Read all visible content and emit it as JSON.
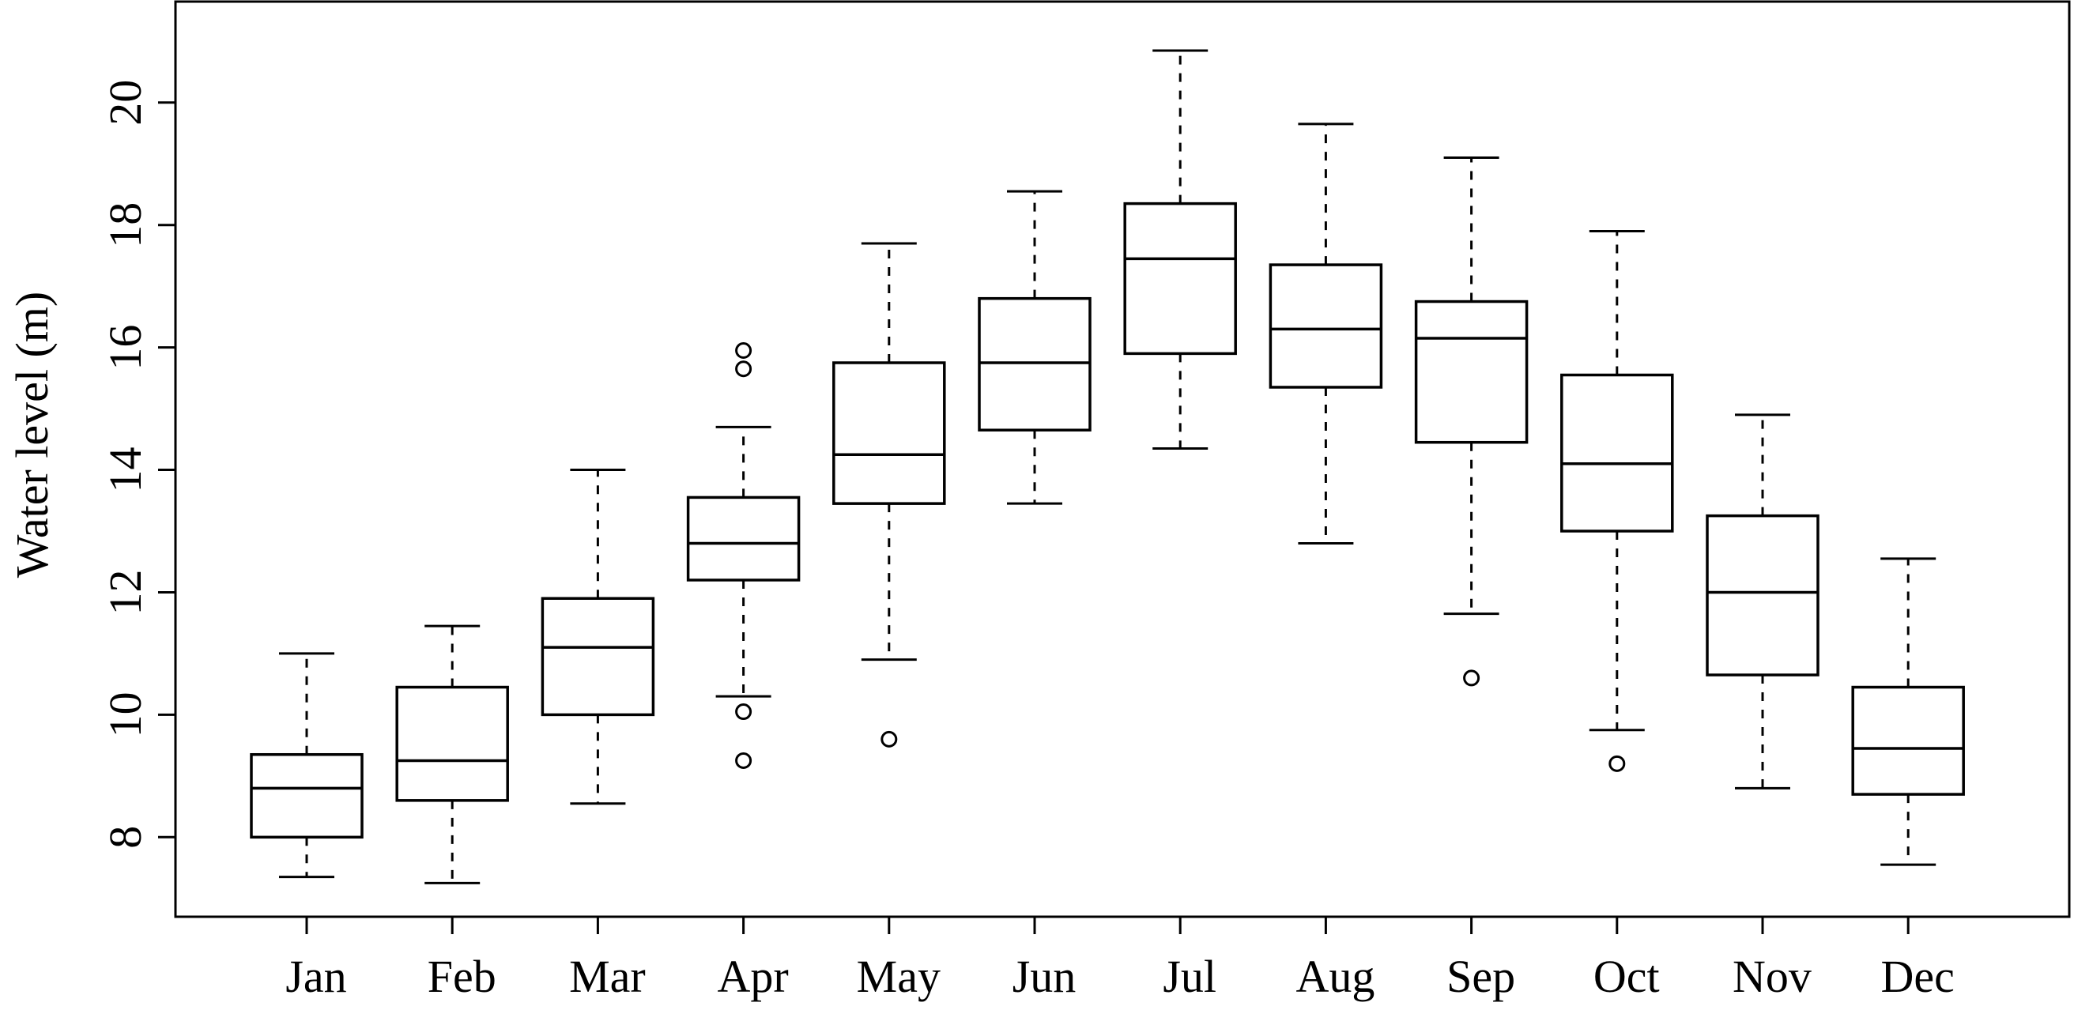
{
  "chart_data": {
    "type": "boxplot",
    "xlabel": "",
    "ylabel": "Water level (m)",
    "ylim": [
      6.7,
      21.65
    ],
    "yticks": [
      8,
      10,
      12,
      14,
      16,
      18,
      20
    ],
    "categories": [
      "Jan",
      "Feb",
      "Mar",
      "Apr",
      "May",
      "Jun",
      "Jul",
      "Aug",
      "Sep",
      "Oct",
      "Nov",
      "Dec"
    ],
    "boxes": [
      {
        "month": "Jan",
        "whisker_low": 7.35,
        "q1": 8.0,
        "median": 8.8,
        "q3": 9.35,
        "whisker_high": 11.0,
        "outliers": []
      },
      {
        "month": "Feb",
        "whisker_low": 7.25,
        "q1": 8.6,
        "median": 9.25,
        "q3": 10.45,
        "whisker_high": 11.45,
        "outliers": []
      },
      {
        "month": "Mar",
        "whisker_low": 8.55,
        "q1": 10.0,
        "median": 11.1,
        "q3": 11.9,
        "whisker_high": 14.0,
        "outliers": []
      },
      {
        "month": "Apr",
        "whisker_low": 10.3,
        "q1": 12.2,
        "median": 12.8,
        "q3": 13.55,
        "whisker_high": 14.7,
        "outliers": [
          15.95,
          15.65,
          10.05,
          9.25
        ]
      },
      {
        "month": "May",
        "whisker_low": 10.9,
        "q1": 13.45,
        "median": 14.25,
        "q3": 15.75,
        "whisker_high": 17.7,
        "outliers": [
          9.6
        ]
      },
      {
        "month": "Jun",
        "whisker_low": 13.45,
        "q1": 14.65,
        "median": 15.75,
        "q3": 16.8,
        "whisker_high": 18.55,
        "outliers": []
      },
      {
        "month": "Jul",
        "whisker_low": 14.35,
        "q1": 15.9,
        "median": 17.45,
        "q3": 18.35,
        "whisker_high": 20.85,
        "outliers": []
      },
      {
        "month": "Aug",
        "whisker_low": 12.8,
        "q1": 15.35,
        "median": 16.3,
        "q3": 17.35,
        "whisker_high": 19.65,
        "outliers": []
      },
      {
        "month": "Sep",
        "whisker_low": 11.65,
        "q1": 14.45,
        "median": 16.15,
        "q3": 16.75,
        "whisker_high": 19.1,
        "outliers": [
          10.6
        ]
      },
      {
        "month": "Oct",
        "whisker_low": 9.75,
        "q1": 13.0,
        "median": 14.1,
        "q3": 15.55,
        "whisker_high": 17.9,
        "outliers": [
          9.2
        ]
      },
      {
        "month": "Nov",
        "whisker_low": 8.8,
        "q1": 10.65,
        "median": 12.0,
        "q3": 13.25,
        "whisker_high": 14.9,
        "outliers": []
      },
      {
        "month": "Dec",
        "whisker_low": 7.55,
        "q1": 8.7,
        "median": 9.45,
        "q3": 10.45,
        "whisker_high": 12.55,
        "outliers": []
      }
    ],
    "grid": false,
    "legend": "none",
    "colors": {
      "line": "#000000",
      "background": "#ffffff"
    }
  }
}
